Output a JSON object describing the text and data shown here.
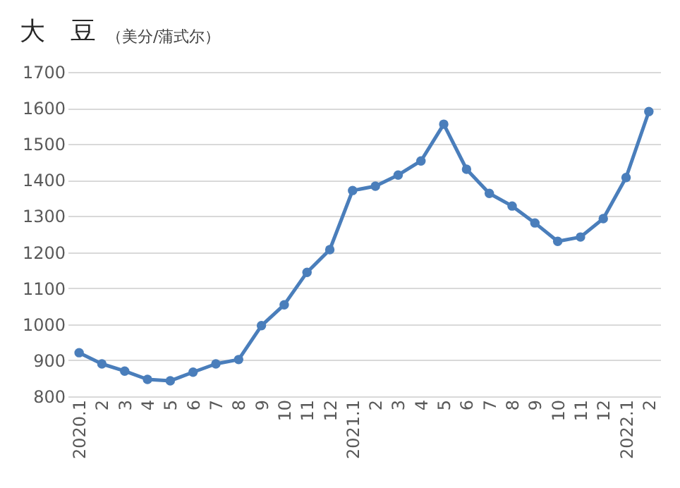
{
  "chart_data": {
    "type": "line",
    "title": "大　豆",
    "ylabel": "（美分/蒲式尔）",
    "categories": [
      "2020.1",
      "2",
      "3",
      "4",
      "5",
      "6",
      "7",
      "8",
      "9",
      "10",
      "11",
      "12",
      "2021.1",
      "2",
      "3",
      "4",
      "5",
      "6",
      "7",
      "8",
      "9",
      "10",
      "11",
      "12",
      "2022.1",
      "2"
    ],
    "series": [
      {
        "color": "#4a7ebb",
        "values": [
          921,
          890,
          870,
          847,
          843,
          867,
          890,
          902,
          996,
          1054,
          1144,
          1207,
          1371,
          1383,
          1414,
          1453,
          1555,
          1430,
          1363,
          1328,
          1281,
          1230,
          1242,
          1293,
          1407,
          1590
        ]
      }
    ],
    "ylim": [
      800,
      1700
    ],
    "yticks": [
      800,
      900,
      1000,
      1100,
      1200,
      1300,
      1400,
      1500,
      1600,
      1700
    ],
    "grid": "y",
    "marker": "circle",
    "line_style": "solid"
  }
}
